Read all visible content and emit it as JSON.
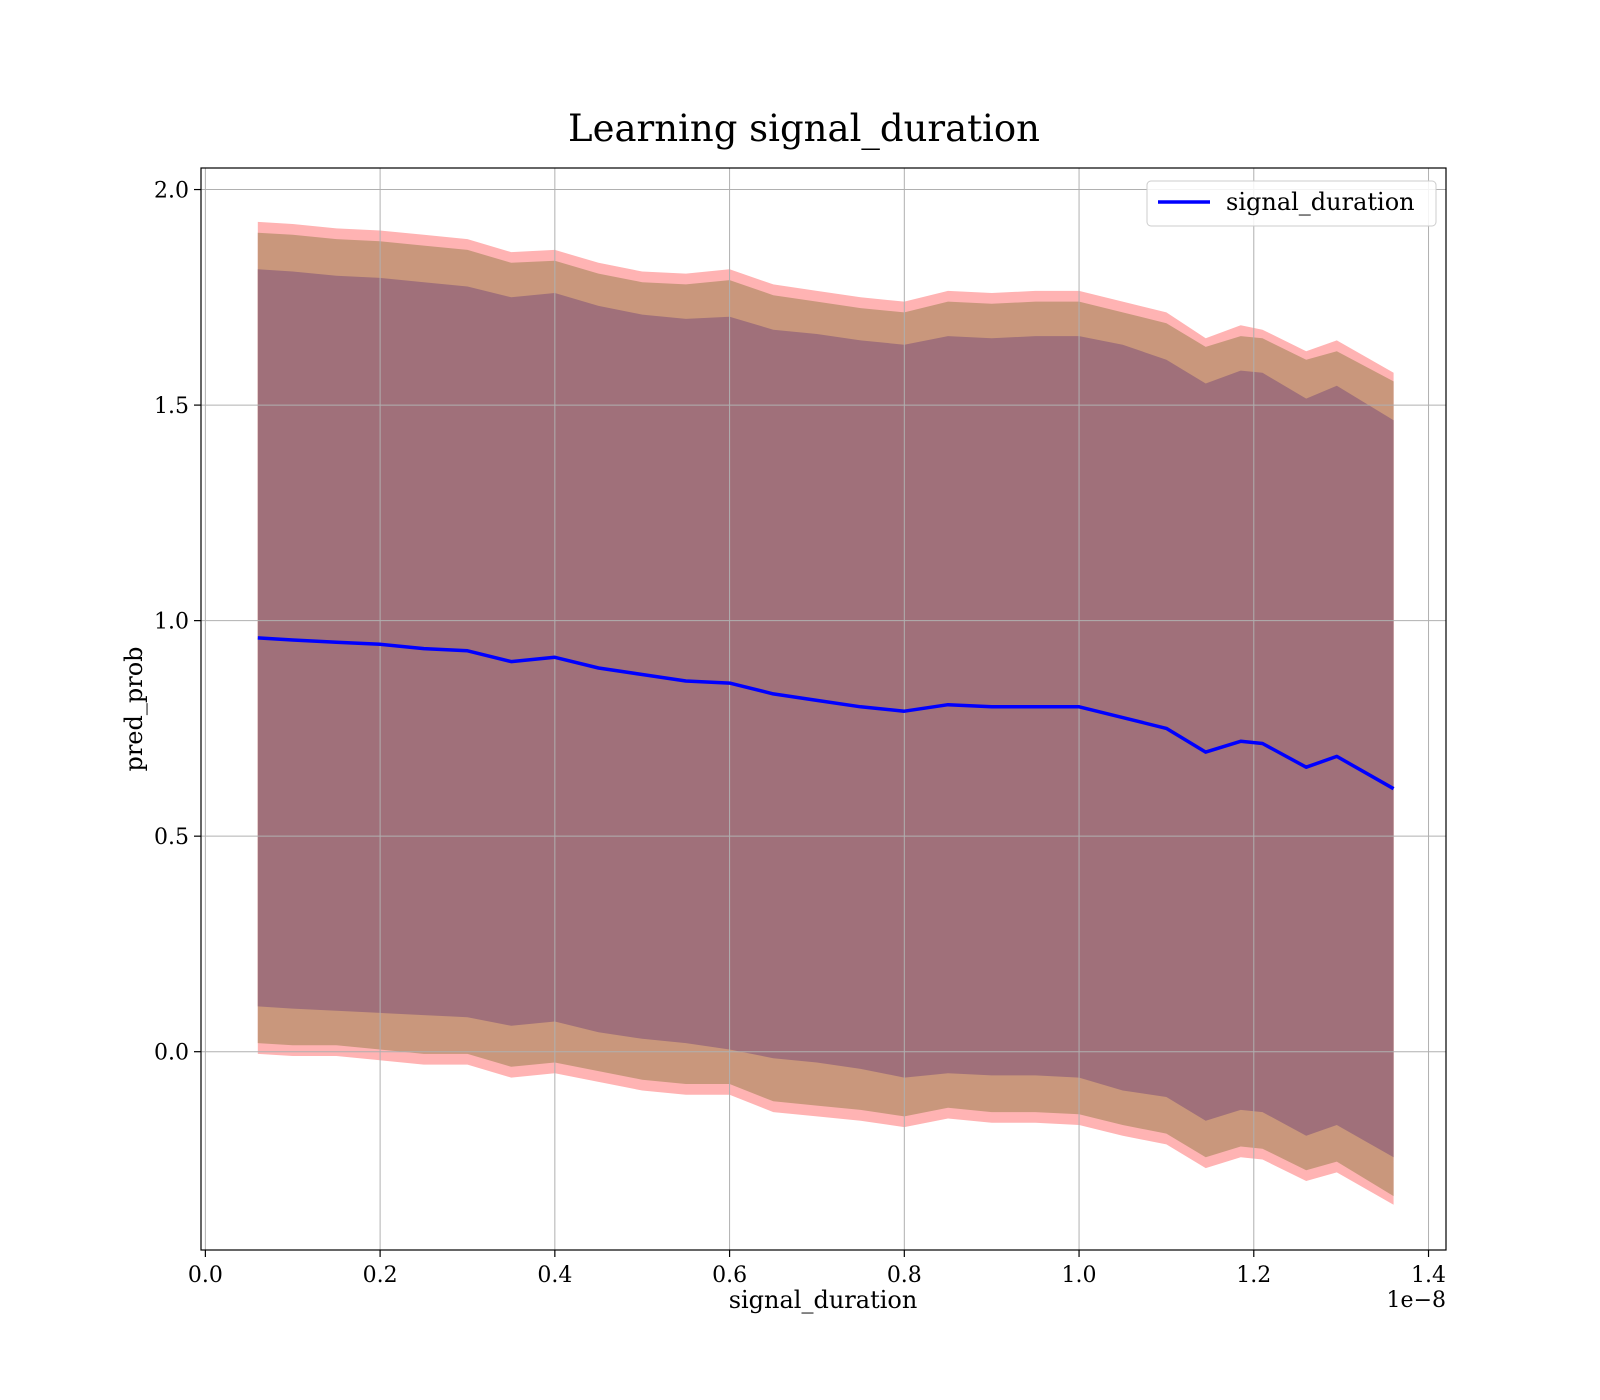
{
  "chart_data": {
    "type": "area",
    "title": "Learning signal_duration",
    "xlabel": "signal_duration",
    "ylabel": "pred_prob",
    "x_scale_label": "1e−8",
    "x_ticks": [
      0.0,
      0.2,
      0.4,
      0.6,
      0.8,
      1.0,
      1.2,
      1.4
    ],
    "x_tick_labels": [
      "0.0",
      "0.2",
      "0.4",
      "0.6",
      "0.8",
      "1.0",
      "1.2",
      "1.4"
    ],
    "y_ticks": [
      0.0,
      0.5,
      1.0,
      1.5,
      2.0
    ],
    "y_tick_labels": [
      "0.0",
      "0.5",
      "1.0",
      "1.5",
      "2.0"
    ],
    "xlim": [
      -0.005,
      1.42
    ],
    "ylim": [
      -0.46,
      2.05
    ],
    "grid": true,
    "legend_placement": "top-right",
    "colors": {
      "line": "#0000ff",
      "band_outer": "#ffb3b3",
      "band_middle": "#c9977c",
      "band_inner": "#a0707a"
    },
    "x": [
      0.06,
      0.1,
      0.15,
      0.2,
      0.25,
      0.3,
      0.35,
      0.4,
      0.45,
      0.5,
      0.55,
      0.6,
      0.65,
      0.7,
      0.75,
      0.8,
      0.85,
      0.9,
      0.95,
      1.0,
      1.05,
      1.1,
      1.145,
      1.185,
      1.21,
      1.26,
      1.295,
      1.36
    ],
    "series": [
      {
        "name": "signal_duration",
        "values": [
          0.96,
          0.955,
          0.95,
          0.945,
          0.935,
          0.93,
          0.905,
          0.915,
          0.89,
          0.875,
          0.86,
          0.855,
          0.83,
          0.815,
          0.8,
          0.79,
          0.805,
          0.8,
          0.8,
          0.8,
          0.775,
          0.75,
          0.695,
          0.72,
          0.715,
          0.66,
          0.685,
          0.61
        ]
      }
    ],
    "bands": [
      {
        "upper": [
          1.925,
          1.92,
          1.91,
          1.905,
          1.895,
          1.885,
          1.855,
          1.86,
          1.83,
          1.81,
          1.805,
          1.815,
          1.78,
          1.765,
          1.75,
          1.74,
          1.765,
          1.76,
          1.765,
          1.765,
          1.74,
          1.715,
          1.655,
          1.685,
          1.675,
          1.625,
          1.65,
          1.575
        ],
        "lower": [
          -0.005,
          -0.01,
          -0.01,
          -0.02,
          -0.03,
          -0.03,
          -0.06,
          -0.05,
          -0.07,
          -0.09,
          -0.1,
          -0.1,
          -0.14,
          -0.15,
          -0.16,
          -0.175,
          -0.155,
          -0.165,
          -0.165,
          -0.17,
          -0.195,
          -0.215,
          -0.27,
          -0.245,
          -0.25,
          -0.3,
          -0.28,
          -0.355
        ]
      },
      {
        "upper": [
          1.9,
          1.895,
          1.885,
          1.88,
          1.87,
          1.86,
          1.83,
          1.835,
          1.805,
          1.785,
          1.78,
          1.79,
          1.755,
          1.74,
          1.725,
          1.715,
          1.74,
          1.735,
          1.74,
          1.74,
          1.715,
          1.69,
          1.635,
          1.66,
          1.655,
          1.605,
          1.625,
          1.555
        ],
        "lower": [
          0.02,
          0.015,
          0.015,
          0.005,
          -0.005,
          -0.005,
          -0.035,
          -0.025,
          -0.045,
          -0.065,
          -0.075,
          -0.075,
          -0.115,
          -0.125,
          -0.135,
          -0.15,
          -0.13,
          -0.14,
          -0.14,
          -0.145,
          -0.17,
          -0.19,
          -0.245,
          -0.22,
          -0.225,
          -0.275,
          -0.255,
          -0.335
        ]
      },
      {
        "upper": [
          1.815,
          1.81,
          1.8,
          1.795,
          1.785,
          1.775,
          1.75,
          1.76,
          1.73,
          1.71,
          1.7,
          1.705,
          1.675,
          1.665,
          1.65,
          1.64,
          1.66,
          1.655,
          1.66,
          1.66,
          1.64,
          1.605,
          1.55,
          1.58,
          1.575,
          1.515,
          1.545,
          1.465
        ],
        "lower": [
          0.105,
          0.1,
          0.095,
          0.09,
          0.085,
          0.08,
          0.06,
          0.07,
          0.045,
          0.03,
          0.02,
          0.005,
          -0.015,
          -0.025,
          -0.04,
          -0.06,
          -0.05,
          -0.055,
          -0.055,
          -0.06,
          -0.09,
          -0.105,
          -0.16,
          -0.135,
          -0.14,
          -0.195,
          -0.17,
          -0.245
        ]
      }
    ]
  }
}
